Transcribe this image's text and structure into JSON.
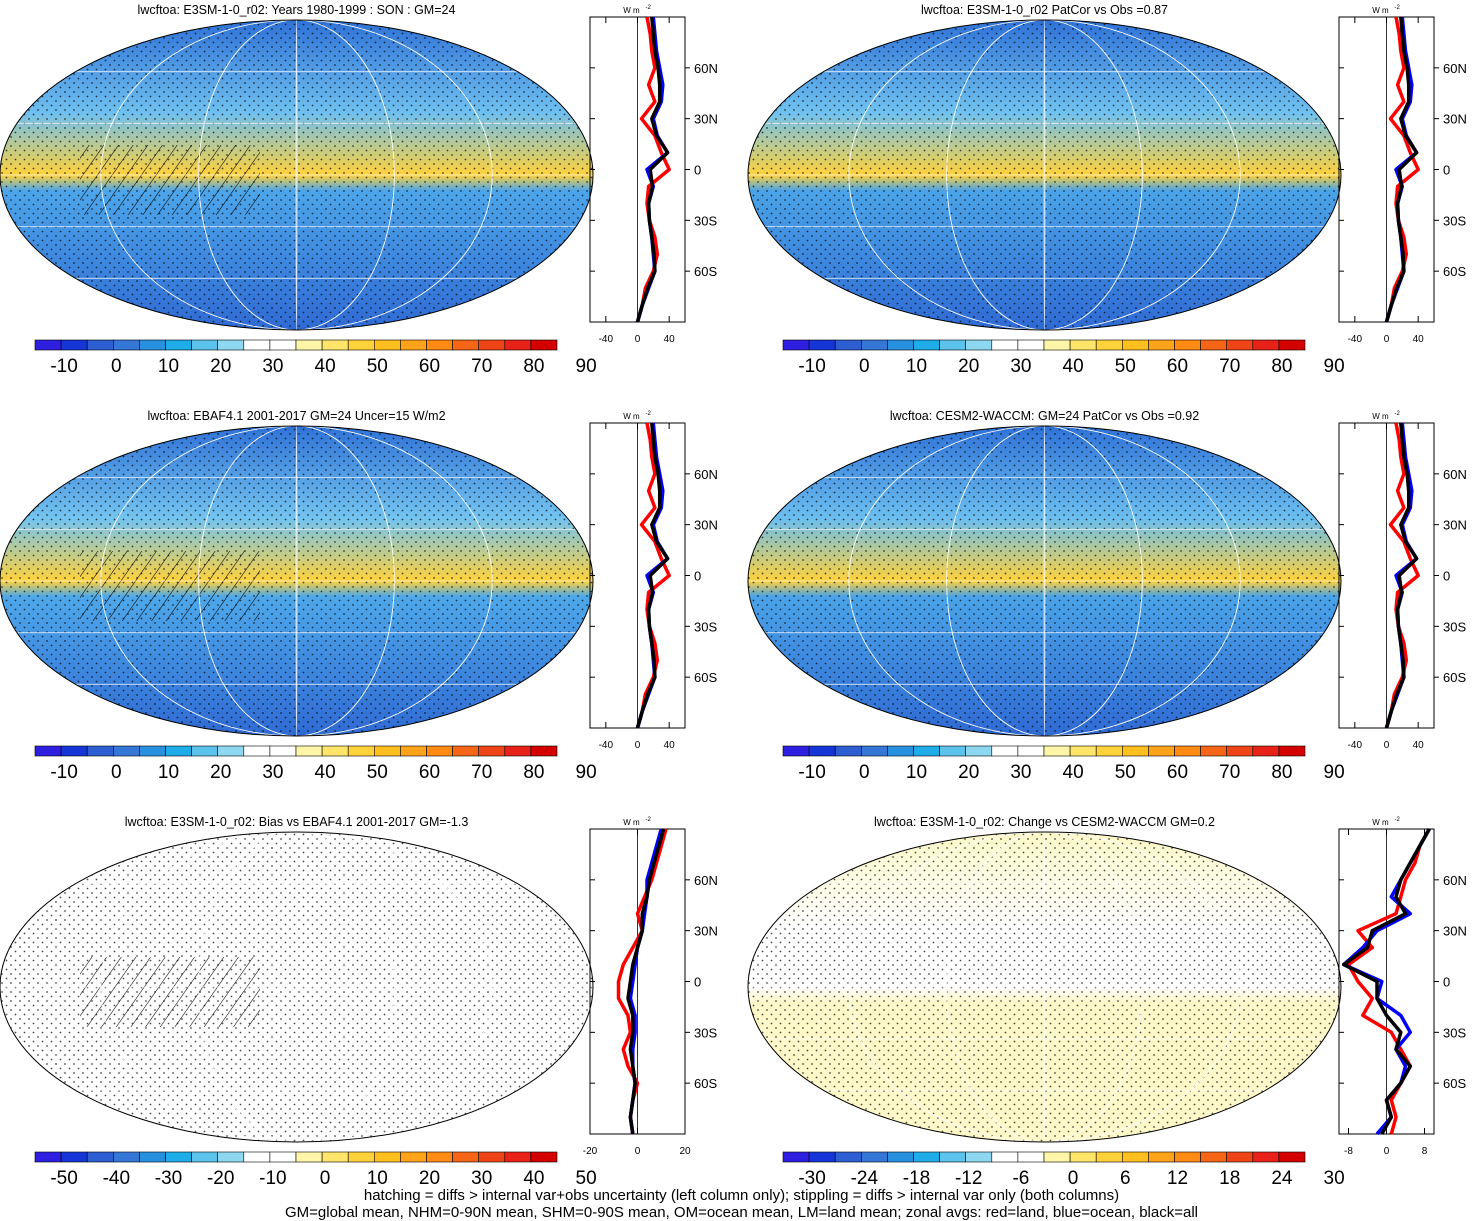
{
  "figure": {
    "panels": [
      {
        "title": "lwcftoa: E3SM-1-0_r02: Years 1980-1999 : SON : GM=24",
        "colorbar": {
          "labels": [
            "-10",
            "0",
            "10",
            "20",
            "30",
            "40",
            "50",
            "60",
            "70",
            "80",
            "90"
          ],
          "colors": [
            "#2e1fe0",
            "#1535d6",
            "#2d5ed2",
            "#3477d6",
            "#2791e0",
            "#1fadea",
            "#5cc4ec",
            "#8dd8f0",
            "#ffffff",
            "#ffffff",
            "#fff5a8",
            "#ffe66a",
            "#ffd23c",
            "#ffbf1e",
            "#ffa41a",
            "#ff8a14",
            "#f76516",
            "#ee4416",
            "#e82218",
            "#d40000"
          ]
        },
        "zonal": {
          "ticks": [
            -40,
            0,
            40
          ],
          "xlim": [
            -60,
            60
          ]
        }
      },
      {
        "title": "lwcftoa: E3SM-1-0_r02 PatCor vs Obs =0.87",
        "colorbar": {
          "labels": [
            "-10",
            "0",
            "10",
            "20",
            "30",
            "40",
            "50",
            "60",
            "70",
            "80",
            "90"
          ],
          "colors": [
            "#2e1fe0",
            "#1535d6",
            "#2d5ed2",
            "#3477d6",
            "#2791e0",
            "#1fadea",
            "#5cc4ec",
            "#8dd8f0",
            "#ffffff",
            "#ffffff",
            "#fff5a8",
            "#ffe66a",
            "#ffd23c",
            "#ffbf1e",
            "#ffa41a",
            "#ff8a14",
            "#f76516",
            "#ee4416",
            "#e82218",
            "#d40000"
          ]
        },
        "zonal": {
          "ticks": [
            -40,
            0,
            40
          ],
          "xlim": [
            -60,
            60
          ]
        }
      },
      {
        "title": "lwcftoa: EBAF4.1 2001-2017 GM=24 Uncer=15 W/m2",
        "colorbar": {
          "labels": [
            "-10",
            "0",
            "10",
            "20",
            "30",
            "40",
            "50",
            "60",
            "70",
            "80",
            "90"
          ],
          "colors": [
            "#2e1fe0",
            "#1535d6",
            "#2d5ed2",
            "#3477d6",
            "#2791e0",
            "#1fadea",
            "#5cc4ec",
            "#8dd8f0",
            "#ffffff",
            "#ffffff",
            "#fff5a8",
            "#ffe66a",
            "#ffd23c",
            "#ffbf1e",
            "#ffa41a",
            "#ff8a14",
            "#f76516",
            "#ee4416",
            "#e82218",
            "#d40000"
          ]
        },
        "zonal": {
          "ticks": [
            -40,
            0,
            40
          ],
          "xlim": [
            -60,
            60
          ]
        }
      },
      {
        "title": "lwcftoa: CESM2-WACCM: GM=24 PatCor vs Obs =0.92",
        "colorbar": {
          "labels": [
            "-10",
            "0",
            "10",
            "20",
            "30",
            "40",
            "50",
            "60",
            "70",
            "80",
            "90"
          ],
          "colors": [
            "#2e1fe0",
            "#1535d6",
            "#2d5ed2",
            "#3477d6",
            "#2791e0",
            "#1fadea",
            "#5cc4ec",
            "#8dd8f0",
            "#ffffff",
            "#ffffff",
            "#fff5a8",
            "#ffe66a",
            "#ffd23c",
            "#ffbf1e",
            "#ffa41a",
            "#ff8a14",
            "#f76516",
            "#ee4416",
            "#e82218",
            "#d40000"
          ]
        },
        "zonal": {
          "ticks": [
            -40,
            0,
            40
          ],
          "xlim": [
            -60,
            60
          ]
        }
      },
      {
        "title": "lwcftoa: E3SM-1-0_r02: Bias vs EBAF4.1 2001-2017  GM=-1.3",
        "colorbar": {
          "labels": [
            "-50",
            "-40",
            "-30",
            "-20",
            "-10",
            "0",
            "10",
            "20",
            "30",
            "40",
            "50"
          ],
          "colors": [
            "#2e1fe0",
            "#1535d6",
            "#2d5ed2",
            "#3477d6",
            "#2791e0",
            "#1fadea",
            "#5cc4ec",
            "#8dd8f0",
            "#ffffff",
            "#ffffff",
            "#fff5a8",
            "#ffe66a",
            "#ffd23c",
            "#ffbf1e",
            "#ffa41a",
            "#ff8a14",
            "#f76516",
            "#ee4416",
            "#e82218",
            "#d40000"
          ]
        },
        "zonal": {
          "ticks": [
            -20,
            0,
            20
          ],
          "xlim": [
            -20,
            20
          ]
        }
      },
      {
        "title": "lwcftoa: E3SM-1-0_r02: Change vs CESM2-WACCM GM=0.2",
        "colorbar": {
          "labels": [
            "-30",
            "-24",
            "-18",
            "-12",
            "-6",
            "0",
            "6",
            "12",
            "18",
            "24",
            "30"
          ],
          "colors": [
            "#2e1fe0",
            "#1535d6",
            "#2d5ed2",
            "#3477d6",
            "#2791e0",
            "#1fadea",
            "#5cc4ec",
            "#8dd8f0",
            "#ffffff",
            "#ffffff",
            "#fff5a8",
            "#ffe66a",
            "#ffd23c",
            "#ffbf1e",
            "#ffa41a",
            "#ff8a14",
            "#f76516",
            "#ee4416",
            "#e82218",
            "#d40000"
          ]
        },
        "zonal": {
          "ticks": [
            -8,
            0,
            8
          ],
          "xlim": [
            -10,
            10
          ]
        }
      }
    ],
    "lat_ticks": [
      "60N",
      "30N",
      "0",
      "30S",
      "60S"
    ],
    "units_label": "W m",
    "units_exponent": "-2",
    "footer_line1": "hatching = diffs > internal var+obs uncertainty (left column only); stippling = diffs > internal var only (both columns)",
    "footer_line2": "GM=global mean, NHM=0-90N mean, SHM=0-90S mean, OM=ocean mean, LM=land mean; zonal avgs: red=land, blue=ocean, black=all"
  },
  "chart_data": [
    {
      "type": "heatmap",
      "title": "lwcftoa: E3SM-1-0_r02: Years 1980-1999 : SON : GM=24",
      "colorbar_ticks": [
        -10,
        0,
        10,
        20,
        30,
        40,
        50,
        60,
        70,
        80,
        90
      ]
    },
    {
      "type": "line",
      "series": [
        {
          "name": "red=land",
          "color": "#ff0000",
          "lat": [
            -90,
            -80,
            -70,
            -60,
            -50,
            -40,
            -30,
            -20,
            -10,
            0,
            10,
            20,
            30,
            40,
            50,
            60,
            70,
            80,
            90
          ],
          "values": [
            0,
            6,
            10,
            20,
            25,
            22,
            15,
            12,
            14,
            40,
            30,
            22,
            5,
            22,
            14,
            22,
            18,
            16,
            12
          ]
        },
        {
          "name": "blue=ocean",
          "color": "#0000ff",
          "lat": [
            -90,
            -80,
            -70,
            -60,
            -50,
            -40,
            -30,
            -20,
            -10,
            0,
            10,
            20,
            30,
            40,
            50,
            60,
            70,
            80,
            90
          ],
          "values": [
            0,
            6,
            14,
            22,
            20,
            18,
            15,
            14,
            20,
            12,
            38,
            25,
            20,
            30,
            32,
            28,
            24,
            22,
            20
          ]
        },
        {
          "name": "black=all",
          "color": "#000000",
          "lat": [
            -90,
            -80,
            -70,
            -60,
            -50,
            -40,
            -30,
            -20,
            -10,
            0,
            10,
            20,
            30,
            40,
            50,
            60,
            70,
            80,
            90
          ],
          "values": [
            0,
            6,
            13,
            22,
            21,
            18,
            15,
            14,
            19,
            16,
            38,
            24,
            18,
            28,
            28,
            26,
            22,
            20,
            18
          ]
        }
      ],
      "ylim": [
        -90,
        90
      ],
      "xlim": [
        -60,
        60
      ]
    },
    {
      "type": "heatmap",
      "title": "lwcftoa: E3SM-1-0_r02 PatCor vs Obs =0.87",
      "colorbar_ticks": [
        -10,
        0,
        10,
        20,
        30,
        40,
        50,
        60,
        70,
        80,
        90
      ]
    },
    {
      "type": "heatmap",
      "title": "lwcftoa: EBAF4.1 2001-2017 GM=24 Uncer=15 W/m2",
      "colorbar_ticks": [
        -10,
        0,
        10,
        20,
        30,
        40,
        50,
        60,
        70,
        80,
        90
      ]
    },
    {
      "type": "heatmap",
      "title": "lwcftoa: CESM2-WACCM: GM=24 PatCor vs Obs =0.92",
      "colorbar_ticks": [
        -10,
        0,
        10,
        20,
        30,
        40,
        50,
        60,
        70,
        80,
        90
      ]
    },
    {
      "type": "heatmap",
      "title": "lwcftoa: E3SM-1-0_r02: Bias vs EBAF4.1 2001-2017  GM=-1.3",
      "colorbar_ticks": [
        -50,
        -40,
        -30,
        -20,
        -10,
        0,
        10,
        20,
        30,
        40,
        50
      ]
    },
    {
      "type": "line",
      "series": [
        {
          "name": "red=land",
          "color": "#ff0000",
          "lat": [
            -90,
            -80,
            -70,
            -60,
            -50,
            -40,
            -30,
            -20,
            -10,
            0,
            10,
            20,
            30,
            40,
            50,
            60,
            70,
            80,
            90
          ],
          "values": [
            -2,
            -3,
            -2,
            0,
            -4,
            -6,
            -3,
            -4,
            -8,
            -8,
            -6,
            -2,
            2,
            0,
            3,
            6,
            8,
            10,
            12
          ]
        },
        {
          "name": "blue=ocean",
          "color": "#0000ff",
          "lat": [
            -90,
            -80,
            -70,
            -60,
            -50,
            -40,
            -30,
            -20,
            -10,
            0,
            10,
            20,
            30,
            40,
            50,
            60,
            70,
            80,
            90
          ],
          "values": [
            -2,
            -3,
            -2,
            -1,
            -2,
            -2,
            -1,
            -1,
            -3,
            -2,
            -1,
            0,
            2,
            3,
            4,
            4,
            6,
            8,
            10
          ]
        },
        {
          "name": "black=all",
          "color": "#000000",
          "lat": [
            -90,
            -80,
            -70,
            -60,
            -50,
            -40,
            -30,
            -20,
            -10,
            0,
            10,
            20,
            30,
            40,
            50,
            60,
            70,
            80,
            90
          ],
          "values": [
            -2,
            -3,
            -2,
            -1,
            -2,
            -3,
            -2,
            -2,
            -4,
            -3,
            -2,
            0,
            2,
            2,
            4,
            5,
            7,
            9,
            11
          ]
        }
      ],
      "ylim": [
        -90,
        90
      ],
      "xlim": [
        -20,
        20
      ]
    },
    {
      "type": "heatmap",
      "title": "lwcftoa: E3SM-1-0_r02: Change vs CESM2-WACCM GM=0.2",
      "colorbar_ticks": [
        -30,
        -24,
        -18,
        -12,
        -6,
        0,
        6,
        12,
        18,
        24,
        30
      ]
    },
    {
      "type": "line",
      "series": [
        {
          "name": "red=land",
          "color": "#ff0000",
          "lat": [
            -90,
            -80,
            -70,
            -60,
            -50,
            -40,
            -30,
            -20,
            -10,
            0,
            10,
            20,
            30,
            40,
            50,
            60,
            70,
            80,
            90
          ],
          "values": [
            1,
            2,
            1,
            3,
            5,
            3,
            1,
            -5,
            -3,
            -6,
            -8,
            -3,
            -6,
            2,
            3,
            4,
            6,
            7,
            9
          ]
        },
        {
          "name": "blue=ocean",
          "color": "#0000ff",
          "lat": [
            -90,
            -80,
            -70,
            -60,
            -50,
            -40,
            -30,
            -20,
            -10,
            0,
            10,
            20,
            30,
            40,
            50,
            60,
            70,
            80,
            90
          ],
          "values": [
            -2,
            1,
            0,
            3,
            4,
            2,
            5,
            3,
            -2,
            -1,
            -9,
            -5,
            -2,
            5,
            1,
            3,
            5,
            7,
            9
          ]
        },
        {
          "name": "black=all",
          "color": "#000000",
          "lat": [
            -90,
            -80,
            -70,
            -60,
            -50,
            -40,
            -30,
            -20,
            -10,
            0,
            10,
            20,
            30,
            40,
            50,
            60,
            70,
            80,
            90
          ],
          "values": [
            -1,
            1,
            0,
            3,
            5,
            2,
            3,
            0,
            -2,
            -2,
            -9,
            -4,
            -3,
            4,
            2,
            3,
            5,
            7,
            9
          ]
        }
      ],
      "ylim": [
        -90,
        90
      ],
      "xlim": [
        -10,
        10
      ]
    }
  ]
}
